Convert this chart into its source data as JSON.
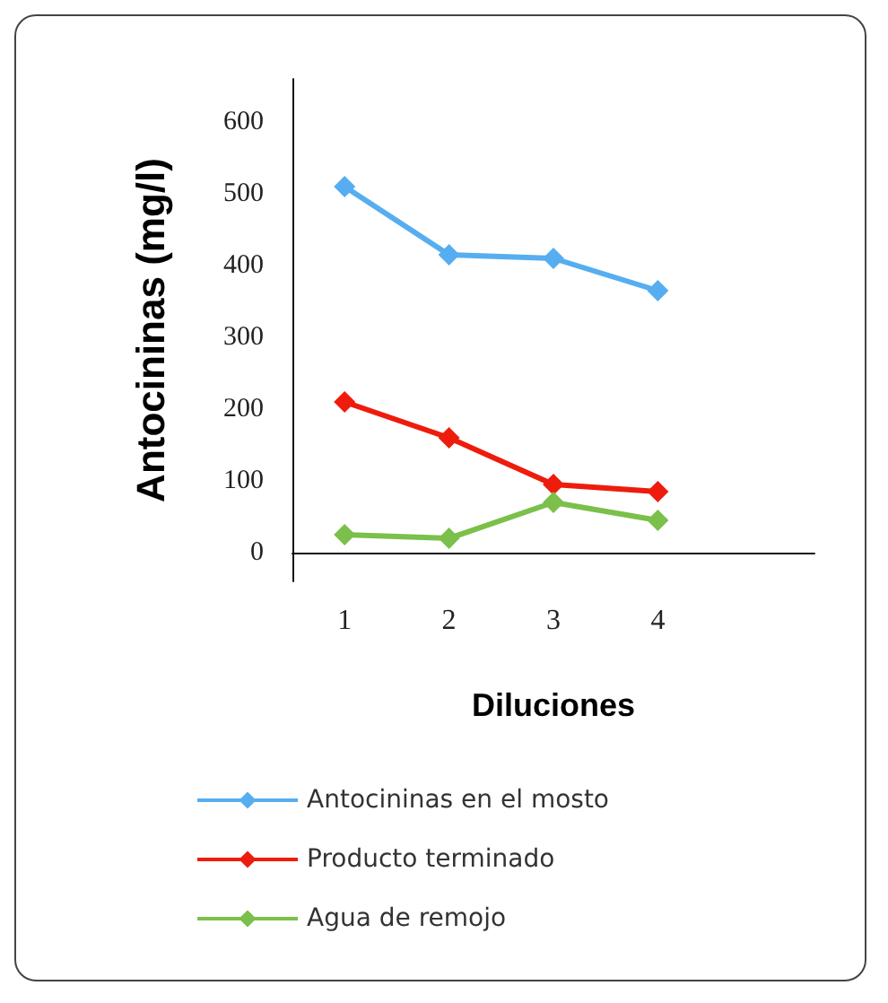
{
  "chart_data": {
    "type": "line",
    "xlabel": "Diluciones",
    "ylabel": "Antocininas (mg/l)",
    "categories": [
      "1",
      "2",
      "3",
      "4",
      null
    ],
    "ylim": [
      -40,
      660
    ],
    "yticks": [
      0,
      100,
      200,
      300,
      400,
      500,
      600
    ],
    "grid": false,
    "legend": "bottom",
    "marker": "diamond",
    "line_style": "solid",
    "series": [
      {
        "name": "Antocininas en el mosto",
        "color": "#56aef0",
        "values": [
          510,
          415,
          410,
          365,
          null
        ]
      },
      {
        "name": "Producto terminado",
        "color": "#ee1c0c",
        "values": [
          210,
          160,
          95,
          85,
          null
        ]
      },
      {
        "name": "Agua de remojo",
        "color": "#7ac04a",
        "values": [
          25,
          20,
          70,
          45,
          null
        ]
      }
    ]
  }
}
